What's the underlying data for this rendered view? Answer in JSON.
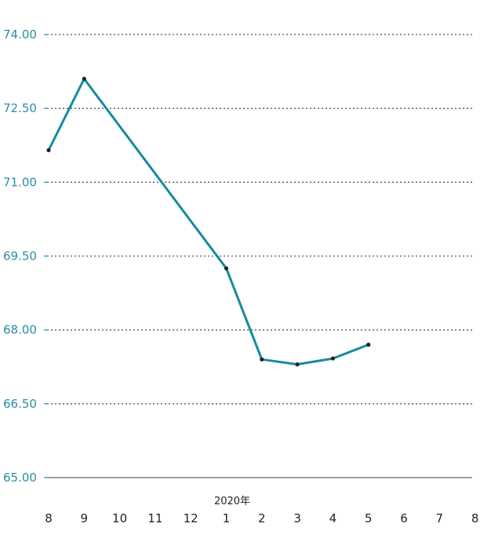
{
  "chart_data": {
    "type": "line",
    "x": [
      "8",
      "9",
      "10",
      "11",
      "12",
      "1",
      "2",
      "3",
      "4",
      "5",
      "6",
      "7",
      "8"
    ],
    "series": [
      {
        "values": [
          71.65,
          73.1,
          null,
          null,
          null,
          69.25,
          67.4,
          67.3,
          67.42,
          67.7,
          null,
          null,
          null
        ]
      }
    ],
    "y_ticks": [
      "74.00",
      "72.50",
      "71.00",
      "69.50",
      "68.00",
      "66.50",
      "65.00"
    ],
    "ylim": [
      65.0,
      74.0
    ],
    "year_label": "2020年",
    "grid": true,
    "line_color": "#168aa0"
  }
}
